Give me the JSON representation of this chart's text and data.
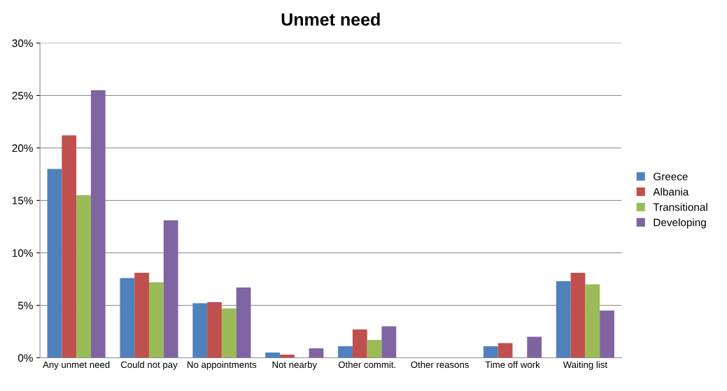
{
  "chart_data": {
    "type": "bar",
    "title": "Unmet need",
    "categories": [
      "Any unmet need",
      "Could not pay",
      "No appointments",
      "Not nearby",
      "Other commit.",
      "Other reasons",
      "Time off work",
      "Waiting list"
    ],
    "series": [
      {
        "name": "Greece",
        "color": "#4f81bd",
        "values": [
          18.0,
          7.6,
          5.2,
          0.5,
          1.1,
          0,
          1.1,
          7.3
        ]
      },
      {
        "name": "Albania",
        "color": "#c0504d",
        "values": [
          21.2,
          8.1,
          5.3,
          0.3,
          2.7,
          0,
          1.4,
          8.1
        ]
      },
      {
        "name": "Transitional",
        "color": "#9bbb59",
        "values": [
          15.5,
          7.2,
          4.7,
          0,
          1.7,
          0,
          0,
          7.0
        ]
      },
      {
        "name": "Developing",
        "color": "#8064a2",
        "values": [
          25.5,
          13.1,
          6.7,
          0.9,
          3.0,
          0,
          2.0,
          4.5
        ]
      }
    ],
    "ylim": [
      0,
      30
    ],
    "yticks": [
      {
        "value": 0,
        "label": "0%"
      },
      {
        "value": 5,
        "label": "5%"
      },
      {
        "value": 10,
        "label": "10%"
      },
      {
        "value": 15,
        "label": "15%"
      },
      {
        "value": 20,
        "label": "20%"
      },
      {
        "value": 25,
        "label": "25%"
      },
      {
        "value": 30,
        "label": "30%"
      }
    ],
    "grid": "y",
    "legend": "right"
  }
}
